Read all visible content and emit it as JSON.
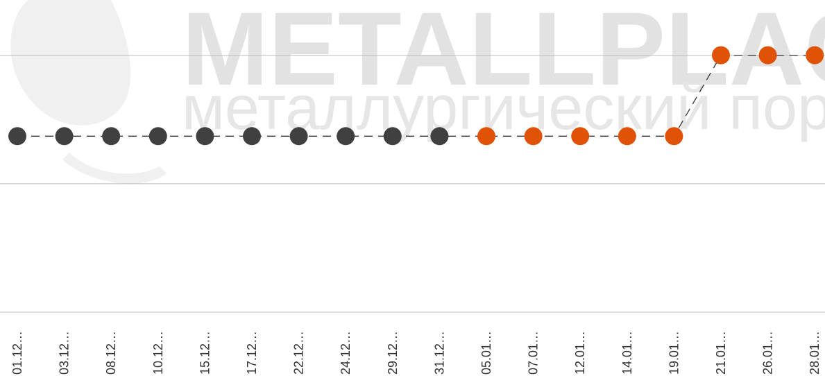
{
  "chart_data": {
    "type": "line",
    "watermark": "METALLPLACE.RU",
    "watermark_subtitle": "металлургический портал",
    "categories": [
      "01.12…",
      "03.12…",
      "08.12…",
      "10.12…",
      "15.12…",
      "17.12…",
      "22.12…",
      "24.12…",
      "29.12…",
      "31.12…",
      "05.01…",
      "07.01…",
      "12.01…",
      "14.01…",
      "19.01…",
      "21.01…",
      "26.01…",
      "28.01…"
    ],
    "series": [
      {
        "color": "#333333",
        "values": [
          1.37,
          1.37,
          1.37,
          1.37,
          1.37,
          1.37,
          1.37,
          1.37,
          1.37,
          1.37,
          1.37,
          1.37,
          1.37,
          1.37,
          1.37,
          2,
          2,
          2
        ],
        "point_colors": [
          "#404040",
          "#404040",
          "#404040",
          "#404040",
          "#404040",
          "#404040",
          "#404040",
          "#404040",
          "#404040",
          "#404040",
          "#e05206",
          "#e05206",
          "#e05206",
          "#e05206",
          "#e05206",
          "#e05206",
          "#e05206",
          "#e05206"
        ]
      }
    ],
    "ylim": [
      0,
      2.43
    ],
    "yticks": [
      0,
      1,
      2
    ],
    "grid": true
  }
}
